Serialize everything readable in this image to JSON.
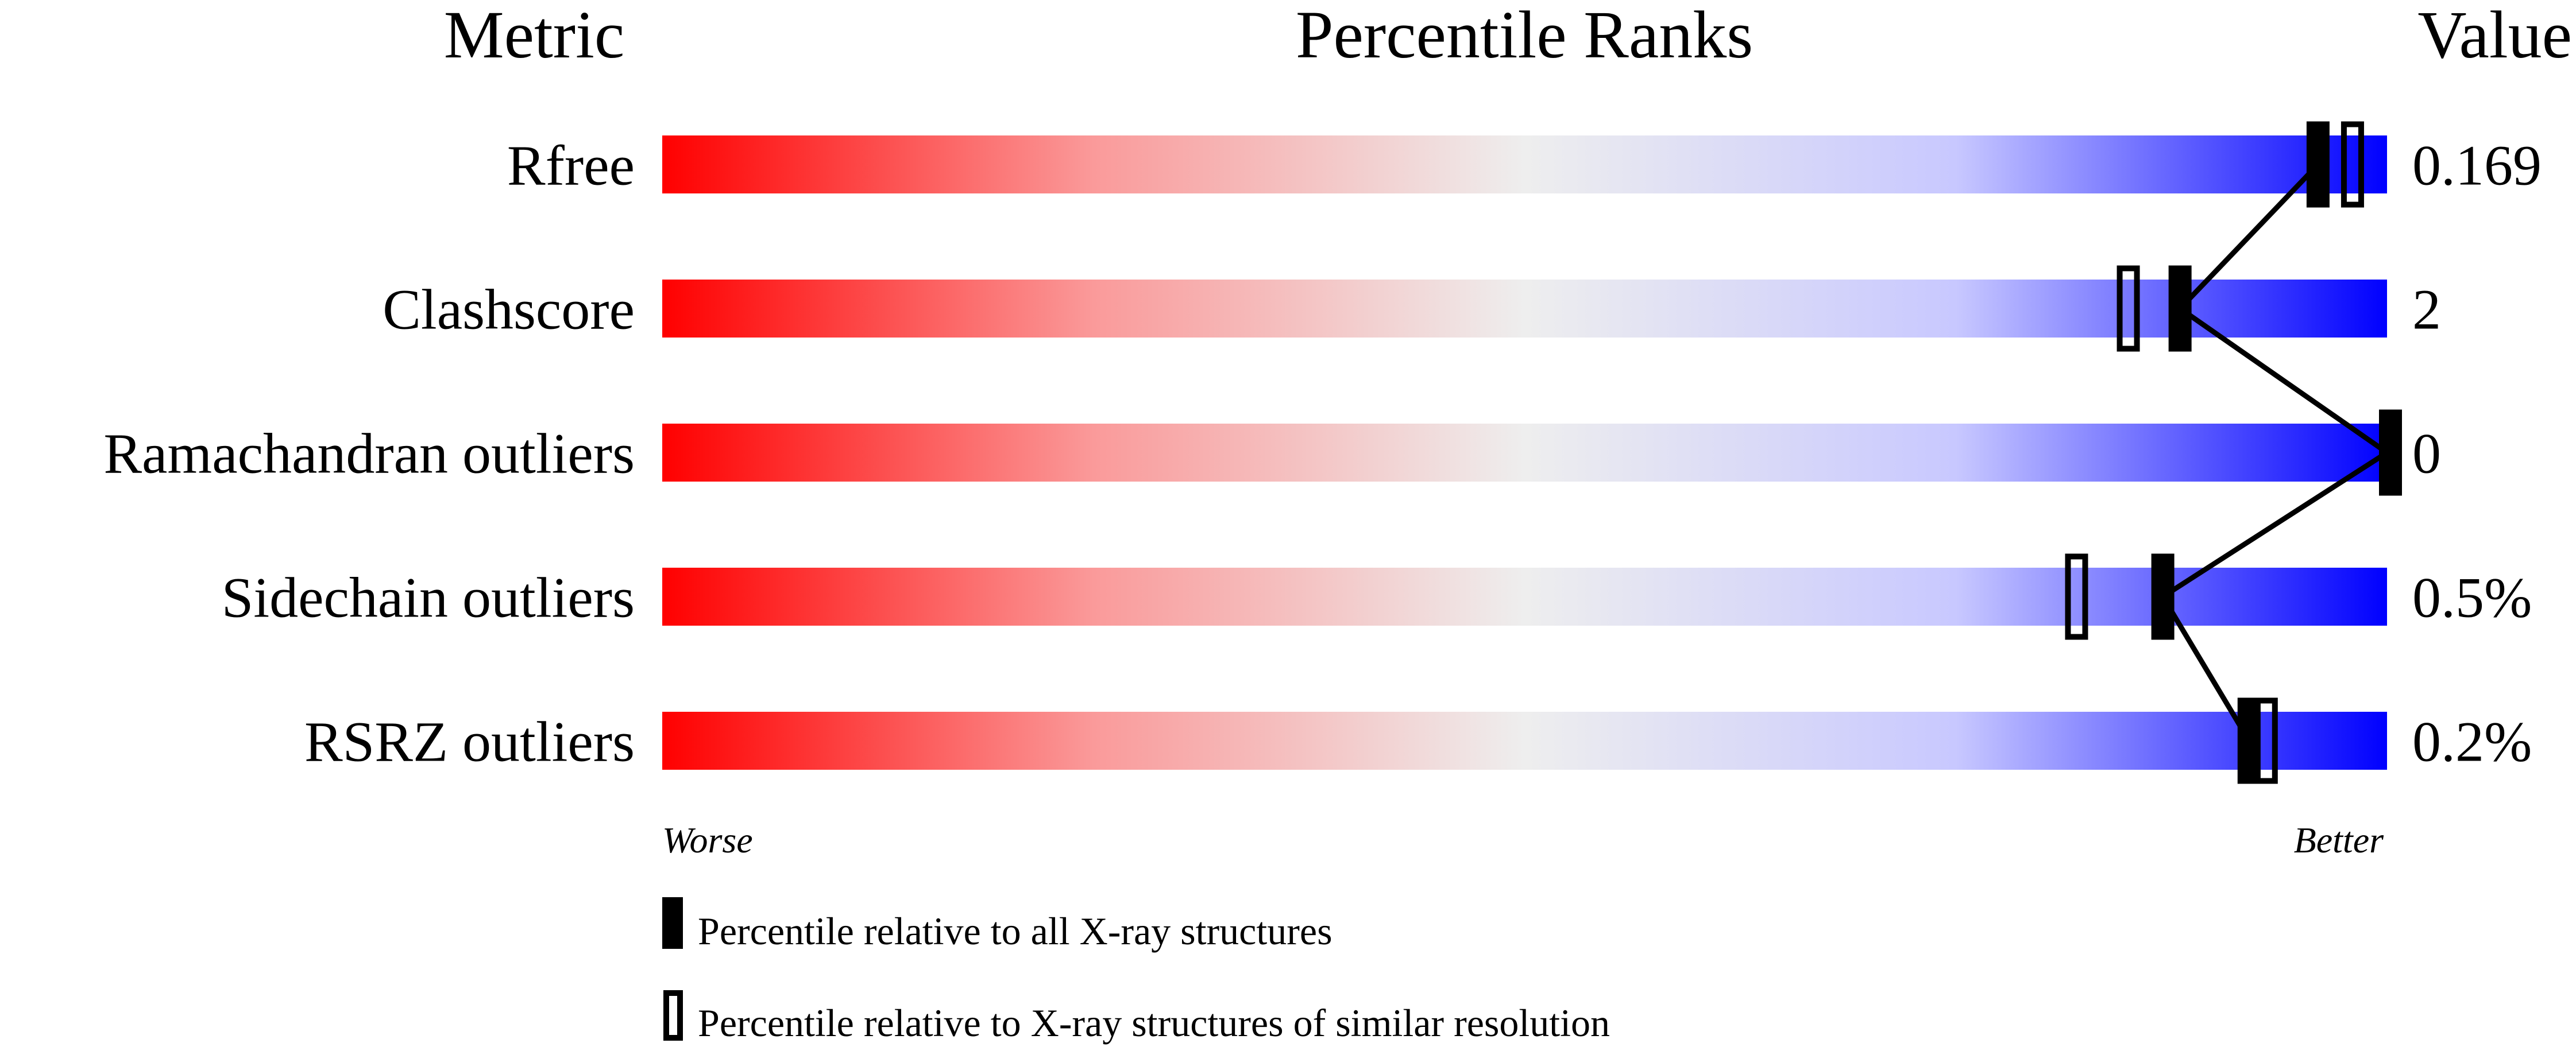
{
  "chart_data": {
    "type": "bar",
    "headers": {
      "metric": "Metric",
      "ranks": "Percentile Ranks",
      "value": "Value"
    },
    "metrics": [
      "Rfree",
      "Clashscore",
      "Ramachandran outliers",
      "Sidechain outliers",
      "RSRZ outliers"
    ],
    "values": [
      "0.169",
      "2",
      "0",
      "0.5%",
      "0.2%"
    ],
    "series": [
      {
        "name": "Percentile relative to all X-ray structures",
        "marker": "filled",
        "percentiles": [
          96,
          88,
          100,
          87,
          92
        ]
      },
      {
        "name": "Percentile relative to X-ray structures of similar resolution",
        "marker": "open",
        "percentiles": [
          98,
          85,
          null,
          82,
          93
        ]
      }
    ],
    "xlim": [
      0,
      100
    ],
    "axis_labels": {
      "left": "Worse",
      "right": "Better"
    },
    "gradient_colors": [
      "#ff0000",
      "#eeeeee",
      "#0000ff"
    ]
  }
}
